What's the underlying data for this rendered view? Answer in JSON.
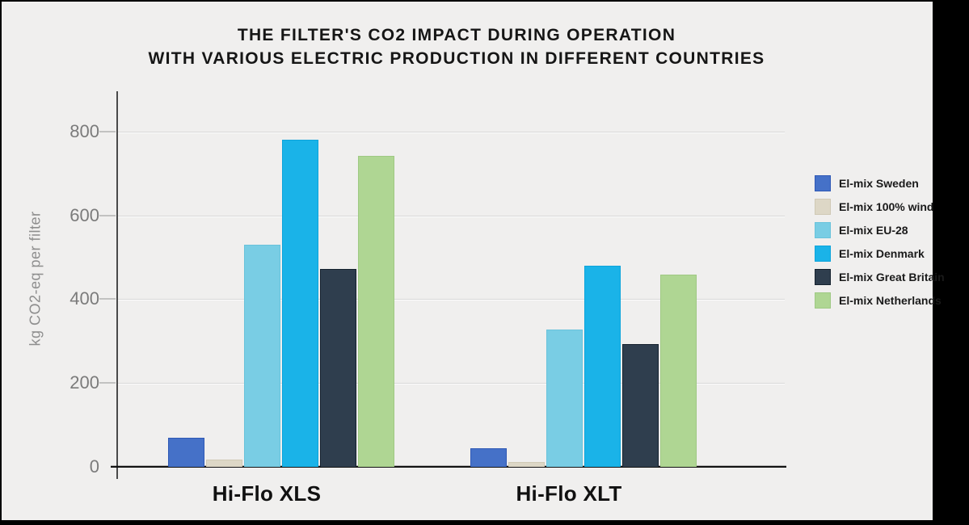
{
  "header": {
    "title_line1": "THE FILTER'S CO2 IMPACT DURING OPERATION",
    "title_line2": "WITH VARIOUS ELECTRIC PRODUCTION IN DIFFERENT COUNTRIES"
  },
  "chart_data": {
    "type": "bar",
    "title": "THE FILTER'S CO2 IMPACT DURING OPERATION WITH VARIOUS ELECTRIC PRODUCTION IN DIFFERENT COUNTRIES",
    "categories": [
      "Hi-Flo XLS",
      "Hi-Flo XLT"
    ],
    "series": [
      {
        "name": "El-mix Sweden",
        "color": "#4571C8",
        "border": "#2F58B5",
        "values": [
          70,
          45
        ]
      },
      {
        "name": "El-mix 100% wind",
        "color": "#DDD7C6",
        "border": "#D0C9B5",
        "values": [
          18,
          12
        ]
      },
      {
        "name": "El-mix EU-28",
        "color": "#79CDE4",
        "border": "#69C3DB",
        "values": [
          530,
          328
        ]
      },
      {
        "name": "El-mix Denmark",
        "color": "#1AB3E8",
        "border": "#0CA4DB",
        "values": [
          780,
          480
        ]
      },
      {
        "name": "El-mix Great Britain",
        "color": "#2F3E4E",
        "border": "#16222F",
        "values": [
          473,
          293
        ]
      },
      {
        "name": "El-mix Netherlands",
        "color": "#AFD693",
        "border": "#9FC983",
        "values": [
          742,
          459
        ]
      }
    ],
    "xlabel": "",
    "ylabel": "kg CO2-eq per filter",
    "y_ticks": [
      0,
      200,
      400,
      600,
      800
    ],
    "ylim": [
      0,
      896
    ],
    "grid": true,
    "legend_position": "right"
  },
  "colors": {
    "canvas_background": "#F0EFEE",
    "page_background": "#000000",
    "gridline": "#D8D8D7",
    "axis_line": "#4A4A4A",
    "baseline": "#121212",
    "title_text": "#161616",
    "tick_text": "#7B7B7B",
    "axis_title_text": "#8E8E8E"
  }
}
